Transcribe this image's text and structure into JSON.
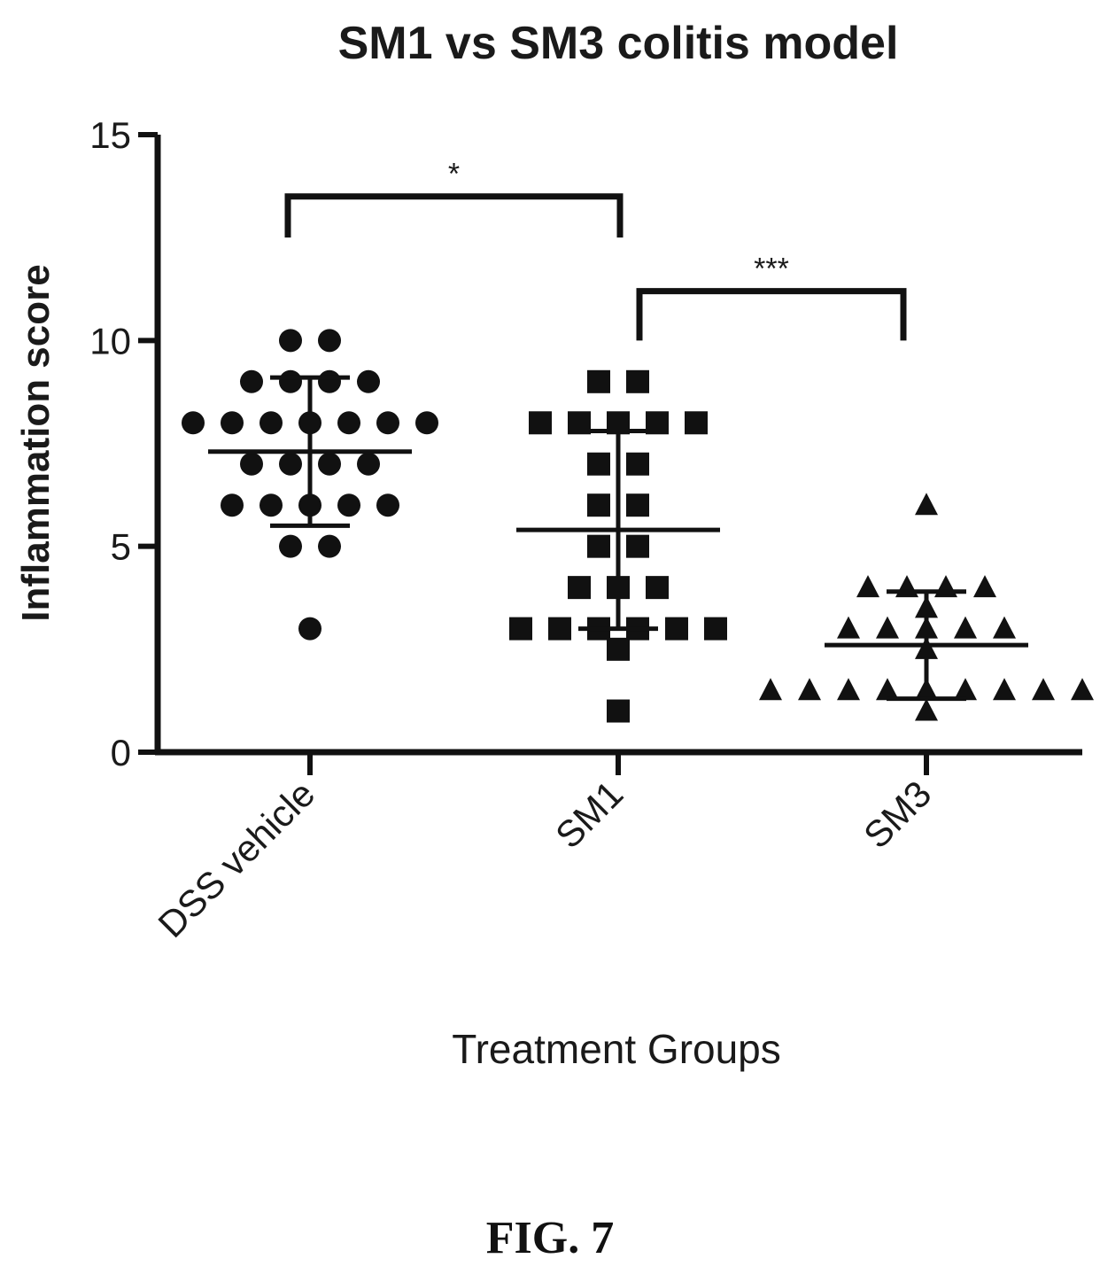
{
  "chart_data": {
    "type": "scatter",
    "title": "SM1 vs SM3 colitis model",
    "xlabel": "Treatment Groups",
    "ylabel": "Inflammation score",
    "ylim": [
      0,
      15
    ],
    "yticks": [
      "0",
      "5",
      "10",
      "15"
    ],
    "categories": [
      "DSS vehicle",
      "SM1",
      "SM3"
    ],
    "series": [
      {
        "category": "DSS vehicle",
        "marker": "circle",
        "values": [
          10,
          10,
          9,
          9,
          9,
          9,
          8,
          8,
          8,
          8,
          8,
          8,
          8,
          7,
          7,
          7,
          7,
          6,
          6,
          6,
          6,
          6,
          5,
          5,
          3
        ],
        "mean": 7.3,
        "sd_low": 5.5,
        "sd_high": 9.1
      },
      {
        "category": "SM1",
        "marker": "square",
        "values": [
          9,
          9,
          8,
          8,
          8,
          8,
          8,
          7,
          7,
          6,
          6,
          5,
          5,
          4,
          4,
          4,
          3,
          3,
          3,
          3,
          3,
          3,
          2.5,
          1
        ],
        "mean": 5.4,
        "sd_low": 3.0,
        "sd_high": 7.8
      },
      {
        "category": "SM3",
        "marker": "triangle",
        "values": [
          6,
          4,
          4,
          4,
          4,
          3.5,
          3,
          3,
          3,
          3,
          3,
          2.5,
          1.5,
          1.5,
          1.5,
          1.5,
          1.5,
          1.5,
          1.5,
          1.5,
          1.5,
          1
        ],
        "mean": 2.6,
        "sd_low": 1.3,
        "sd_high": 3.9
      }
    ],
    "significance": [
      {
        "from": "DSS vehicle",
        "to": "SM1",
        "label": "*",
        "y": 13.5
      },
      {
        "from": "SM1",
        "to": "SM3",
        "label": "***",
        "y": 11.2
      }
    ]
  },
  "figure_label": "FIG. 7"
}
